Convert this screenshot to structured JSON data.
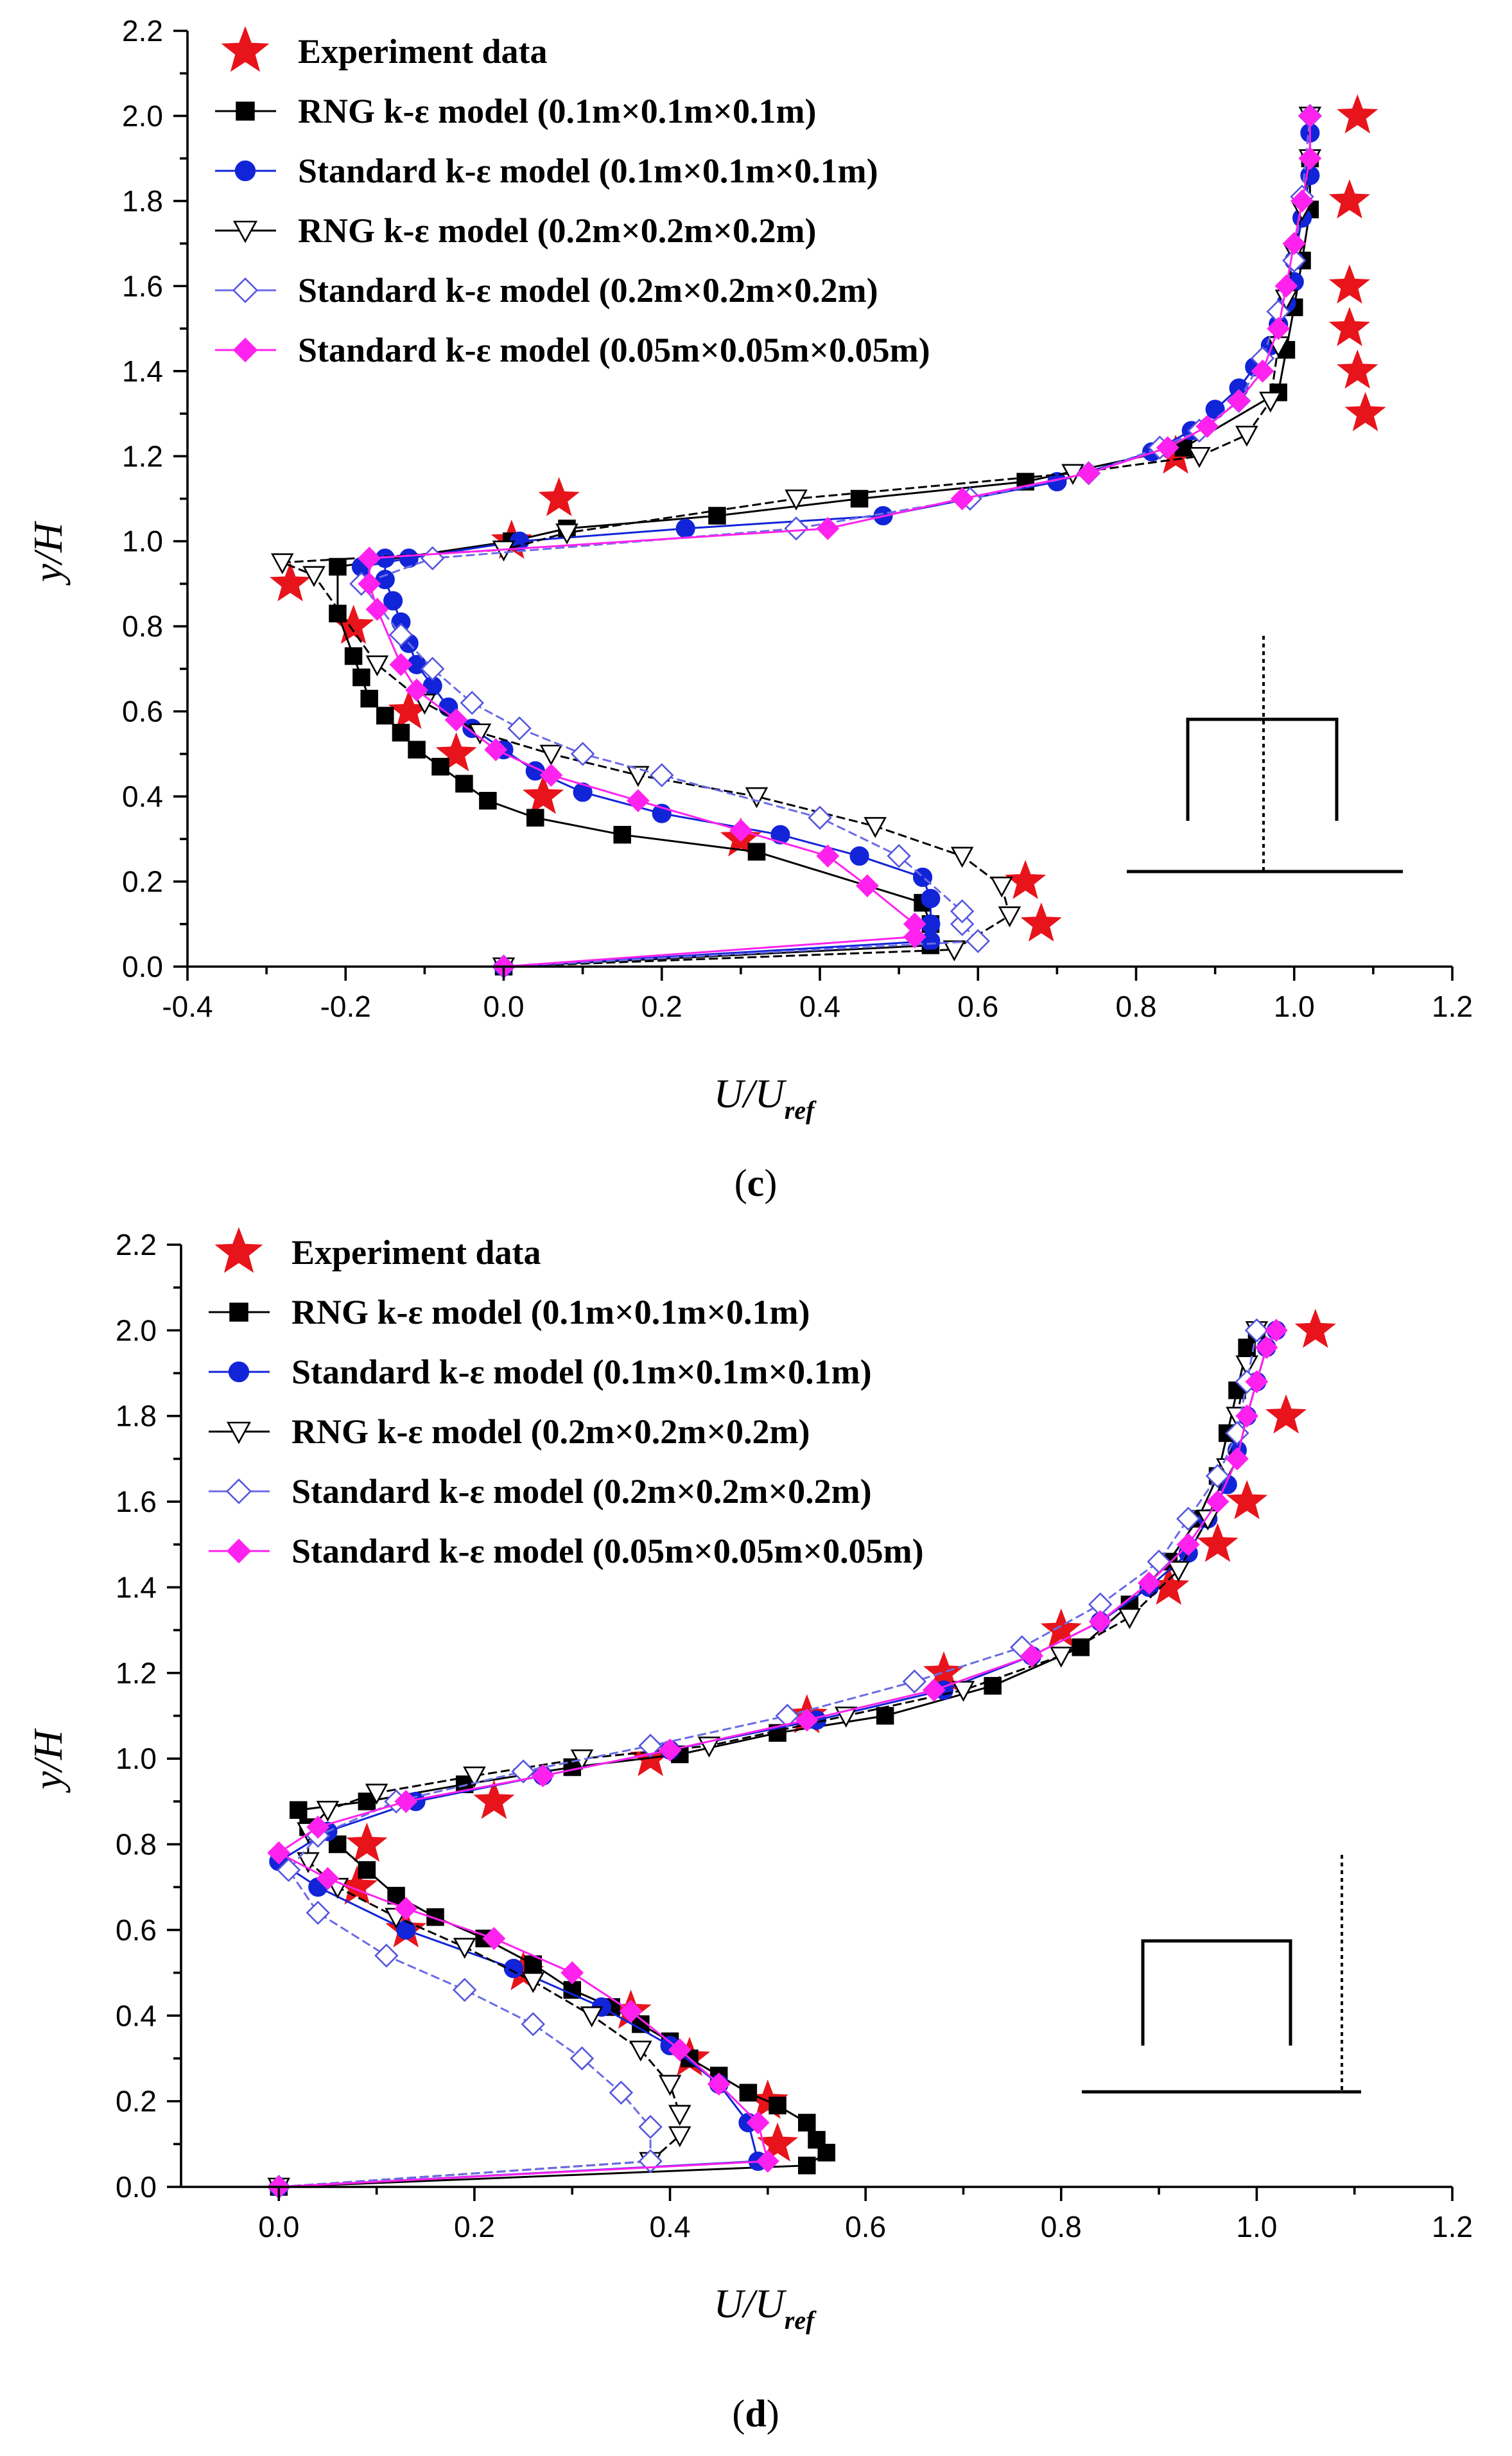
{
  "chart_data": [
    {
      "type": "line",
      "panel_label": "c",
      "xlabel": "U/U",
      "xlabel_sub": "ref",
      "ylabel": "y/H",
      "xlim": [
        -0.4,
        1.2
      ],
      "ylim": [
        0.0,
        2.2
      ],
      "x_ticks": [
        "-0.4",
        "-0.2",
        "0.0",
        "0.2",
        "0.4",
        "0.6",
        "0.8",
        "1.0",
        "1.2"
      ],
      "y_ticks": [
        "0.0",
        "0.2",
        "0.4",
        "0.6",
        "0.8",
        "1.0",
        "1.2",
        "1.4",
        "1.6",
        "1.8",
        "2.0",
        "2.2"
      ],
      "legend_position": "top-left",
      "inset": "building-with-probe-line-at-center",
      "series": [
        {
          "name": "Experiment data",
          "style": "star",
          "color": "#e8141b",
          "line": false,
          "x": [
            0.68,
            0.66,
            0.3,
            0.05,
            -0.06,
            -0.12,
            -0.19,
            -0.27,
            0.01,
            0.07,
            0.85,
            1.09,
            1.08,
            1.07,
            1.07,
            1.07,
            1.08
          ],
          "y": [
            0.1,
            0.2,
            0.3,
            0.4,
            0.5,
            0.6,
            0.8,
            0.9,
            1.0,
            1.1,
            1.2,
            1.3,
            1.4,
            1.5,
            1.6,
            1.8,
            2.0
          ]
        },
        {
          "name": "RNG k-ε model (0.1m×0.1m×0.1m)",
          "style": "square",
          "color": "#000000",
          "line": true,
          "x": [
            0.0,
            0.54,
            0.54,
            0.53,
            0.32,
            0.15,
            0.04,
            -0.02,
            -0.05,
            -0.08,
            -0.11,
            -0.13,
            -0.15,
            -0.17,
            -0.18,
            -0.19,
            -0.21,
            -0.21,
            0.01,
            0.08,
            0.27,
            0.45,
            0.66,
            0.86,
            0.98,
            0.99,
            1.0,
            1.01,
            1.02,
            1.02
          ],
          "y": [
            0.0,
            0.05,
            0.1,
            0.15,
            0.27,
            0.31,
            0.35,
            0.39,
            0.43,
            0.47,
            0.51,
            0.55,
            0.59,
            0.63,
            0.68,
            0.73,
            0.83,
            0.94,
            1.0,
            1.03,
            1.06,
            1.1,
            1.14,
            1.22,
            1.35,
            1.45,
            1.55,
            1.66,
            1.78,
            1.9
          ]
        },
        {
          "name": "Standard k-ε model (0.1m×0.1m×0.1m)",
          "style": "circle",
          "color": "#1224d8",
          "line": true,
          "x": [
            0.0,
            0.54,
            0.54,
            0.54,
            0.53,
            0.45,
            0.35,
            0.2,
            0.1,
            0.04,
            0.0,
            -0.04,
            -0.07,
            -0.09,
            -0.11,
            -0.12,
            -0.13,
            -0.14,
            -0.15,
            -0.15,
            -0.18,
            -0.12,
            0.02,
            0.23,
            0.48,
            0.7,
            0.82,
            0.87,
            0.9,
            0.93,
            0.95,
            0.97,
            0.98,
            0.99,
            1.0,
            1.0,
            1.01,
            1.02,
            1.02
          ],
          "y": [
            0.0,
            0.06,
            0.1,
            0.16,
            0.21,
            0.26,
            0.31,
            0.36,
            0.41,
            0.46,
            0.51,
            0.56,
            0.61,
            0.66,
            0.71,
            0.76,
            0.81,
            0.86,
            0.91,
            0.96,
            0.94,
            0.96,
            1.0,
            1.03,
            1.06,
            1.14,
            1.21,
            1.26,
            1.31,
            1.36,
            1.41,
            1.46,
            1.51,
            1.56,
            1.61,
            1.66,
            1.76,
            1.86,
            1.96
          ]
        },
        {
          "name": "RNG k-ε model (0.2m×0.2m×0.2m)",
          "style": "triangle-down",
          "color": "#000000",
          "line": true,
          "x": [
            0.0,
            0.57,
            0.64,
            0.63,
            0.58,
            0.47,
            0.32,
            0.17,
            0.06,
            -0.03,
            -0.1,
            -0.16,
            -0.24,
            -0.28,
            0.0,
            0.08,
            0.37,
            0.72,
            0.88,
            0.94,
            0.97,
            0.98,
            0.99,
            1.0,
            1.01,
            1.02,
            1.02
          ],
          "y": [
            0.0,
            0.04,
            0.12,
            0.19,
            0.26,
            0.33,
            0.4,
            0.45,
            0.5,
            0.55,
            0.62,
            0.71,
            0.92,
            0.95,
            0.98,
            1.02,
            1.1,
            1.16,
            1.2,
            1.25,
            1.33,
            1.46,
            1.57,
            1.68,
            1.78,
            1.9,
            2.0
          ]
        },
        {
          "name": "Standard k-ε model (0.2m×0.2m×0.2m)",
          "style": "diamond-open",
          "color": "#5555e0",
          "line": true,
          "x": [
            0.0,
            0.6,
            0.58,
            0.58,
            0.5,
            0.4,
            0.2,
            0.1,
            0.02,
            -0.04,
            -0.09,
            -0.13,
            -0.18,
            -0.09,
            0.37,
            0.59,
            0.74,
            0.83,
            0.88,
            0.93,
            0.96,
            0.98,
            1.0,
            1.01,
            1.02
          ],
          "y": [
            0.0,
            0.06,
            0.1,
            0.13,
            0.26,
            0.35,
            0.45,
            0.5,
            0.56,
            0.62,
            0.7,
            0.78,
            0.9,
            0.96,
            1.03,
            1.1,
            1.16,
            1.22,
            1.26,
            1.33,
            1.43,
            1.54,
            1.66,
            1.81,
            2.0
          ]
        },
        {
          "name": "Standard k-ε model (0.05m×0.05m×0.05m)",
          "style": "diamond",
          "color": "#ff22ee",
          "line": true,
          "x": [
            0.0,
            0.52,
            0.52,
            0.46,
            0.41,
            0.3,
            0.17,
            0.06,
            -0.01,
            -0.06,
            -0.11,
            -0.13,
            -0.16,
            -0.17,
            -0.17,
            0.41,
            0.58,
            0.74,
            0.84,
            0.89,
            0.93,
            0.96,
            0.98,
            0.99,
            1.0,
            1.01,
            1.02,
            1.02
          ],
          "y": [
            0.0,
            0.07,
            0.1,
            0.19,
            0.26,
            0.32,
            0.39,
            0.45,
            0.51,
            0.58,
            0.65,
            0.71,
            0.84,
            0.9,
            0.96,
            1.03,
            1.1,
            1.16,
            1.22,
            1.27,
            1.33,
            1.4,
            1.5,
            1.6,
            1.7,
            1.8,
            1.9,
            2.0
          ]
        }
      ]
    },
    {
      "type": "line",
      "panel_label": "d",
      "xlabel": "U/U",
      "xlabel_sub": "ref",
      "ylabel": "y/H",
      "xlim": [
        -0.1,
        1.2
      ],
      "ylim": [
        0.0,
        2.2
      ],
      "x_ticks": [
        "0.0",
        "0.2",
        "0.4",
        "0.6",
        "0.8",
        "1.0",
        "1.2"
      ],
      "y_ticks": [
        "0.0",
        "0.2",
        "0.4",
        "0.6",
        "0.8",
        "1.0",
        "1.2",
        "1.4",
        "1.6",
        "1.8",
        "2.0",
        "2.2"
      ],
      "legend_position": "top-left",
      "inset": "building-with-probe-line-behind",
      "series": [
        {
          "name": "Experiment data",
          "style": "star",
          "color": "#e8141b",
          "line": false,
          "x": [
            0.51,
            0.5,
            0.42,
            0.36,
            0.25,
            0.13,
            0.08,
            0.09,
            0.22,
            0.38,
            0.54,
            0.68,
            0.8,
            0.91,
            0.96,
            0.99,
            1.03,
            1.06
          ],
          "y": [
            0.1,
            0.2,
            0.3,
            0.41,
            0.5,
            0.6,
            0.7,
            0.8,
            0.9,
            1.0,
            1.1,
            1.2,
            1.3,
            1.4,
            1.5,
            1.6,
            1.8,
            2.0
          ]
        },
        {
          "name": "RNG k-ε model (0.1m×0.1m×0.1m)",
          "style": "square",
          "color": "#000000",
          "line": true,
          "x": [
            0.0,
            0.54,
            0.56,
            0.55,
            0.54,
            0.51,
            0.48,
            0.45,
            0.42,
            0.4,
            0.37,
            0.34,
            0.3,
            0.26,
            0.21,
            0.16,
            0.12,
            0.09,
            0.06,
            0.03,
            0.02,
            0.09,
            0.19,
            0.3,
            0.41,
            0.51,
            0.62,
            0.73,
            0.82,
            0.87,
            0.91,
            0.94,
            0.96,
            0.97,
            0.98,
            0.99,
            1.0
          ],
          "y": [
            0.0,
            0.05,
            0.08,
            0.11,
            0.15,
            0.19,
            0.22,
            0.26,
            0.3,
            0.34,
            0.38,
            0.42,
            0.46,
            0.52,
            0.58,
            0.63,
            0.68,
            0.74,
            0.8,
            0.84,
            0.88,
            0.9,
            0.94,
            0.98,
            1.01,
            1.06,
            1.1,
            1.17,
            1.26,
            1.36,
            1.46,
            1.56,
            1.66,
            1.76,
            1.86,
            1.96,
            2.0
          ]
        },
        {
          "name": "Standard k-ε model (0.1m×0.1m×0.1m)",
          "style": "circle",
          "color": "#1224d8",
          "line": true,
          "x": [
            0.0,
            0.49,
            0.48,
            0.45,
            0.4,
            0.33,
            0.24,
            0.13,
            0.04,
            0.0,
            0.05,
            0.14,
            0.27,
            0.4,
            0.55,
            0.68,
            0.77,
            0.84,
            0.89,
            0.93,
            0.95,
            0.97,
            0.98,
            0.99,
            1.0,
            1.01,
            1.02
          ],
          "y": [
            0.0,
            0.06,
            0.15,
            0.24,
            0.33,
            0.42,
            0.51,
            0.6,
            0.7,
            0.76,
            0.83,
            0.9,
            0.96,
            1.02,
            1.09,
            1.16,
            1.24,
            1.32,
            1.4,
            1.48,
            1.56,
            1.64,
            1.72,
            1.8,
            1.88,
            1.96,
            2.0
          ]
        },
        {
          "name": "RNG k-ε model (0.2m×0.2m×0.2m)",
          "style": "triangle-down",
          "color": "#000000",
          "line": true,
          "x": [
            0.0,
            0.38,
            0.41,
            0.41,
            0.4,
            0.37,
            0.32,
            0.26,
            0.19,
            0.12,
            0.06,
            0.03,
            0.03,
            0.05,
            0.1,
            0.2,
            0.31,
            0.44,
            0.58,
            0.7,
            0.8,
            0.87,
            0.92,
            0.95,
            0.97,
            0.98,
            0.99,
            1.0
          ],
          "y": [
            0.0,
            0.06,
            0.12,
            0.17,
            0.24,
            0.32,
            0.4,
            0.48,
            0.56,
            0.63,
            0.7,
            0.76,
            0.83,
            0.88,
            0.92,
            0.96,
            1.0,
            1.03,
            1.1,
            1.16,
            1.24,
            1.33,
            1.44,
            1.56,
            1.68,
            1.8,
            1.92,
            2.0
          ]
        },
        {
          "name": "Standard k-ε model (0.2m×0.2m×0.2m)",
          "style": "diamond-open",
          "color": "#5555e0",
          "line": true,
          "x": [
            0.0,
            0.38,
            0.38,
            0.35,
            0.31,
            0.26,
            0.19,
            0.11,
            0.04,
            0.01,
            0.04,
            0.12,
            0.25,
            0.38,
            0.52,
            0.65,
            0.76,
            0.84,
            0.9,
            0.93,
            0.96,
            0.98,
            0.99,
            1.0
          ],
          "y": [
            0.0,
            0.06,
            0.14,
            0.22,
            0.3,
            0.38,
            0.46,
            0.54,
            0.64,
            0.74,
            0.82,
            0.9,
            0.97,
            1.03,
            1.1,
            1.18,
            1.26,
            1.36,
            1.46,
            1.56,
            1.66,
            1.76,
            1.88,
            2.0
          ]
        },
        {
          "name": "Standard k-ε model (0.05m×0.05m×0.05m)",
          "style": "diamond",
          "color": "#ff22ee",
          "line": true,
          "x": [
            0.0,
            0.5,
            0.49,
            0.45,
            0.41,
            0.36,
            0.3,
            0.22,
            0.13,
            0.05,
            0.0,
            0.04,
            0.13,
            0.27,
            0.4,
            0.54,
            0.67,
            0.77,
            0.84,
            0.89,
            0.93,
            0.96,
            0.98,
            0.99,
            1.0,
            1.01,
            1.02
          ],
          "y": [
            0.0,
            0.06,
            0.15,
            0.24,
            0.32,
            0.41,
            0.5,
            0.58,
            0.65,
            0.72,
            0.78,
            0.84,
            0.9,
            0.96,
            1.02,
            1.09,
            1.16,
            1.24,
            1.32,
            1.41,
            1.5,
            1.6,
            1.7,
            1.8,
            1.88,
            1.96,
            2.0
          ]
        }
      ]
    }
  ]
}
